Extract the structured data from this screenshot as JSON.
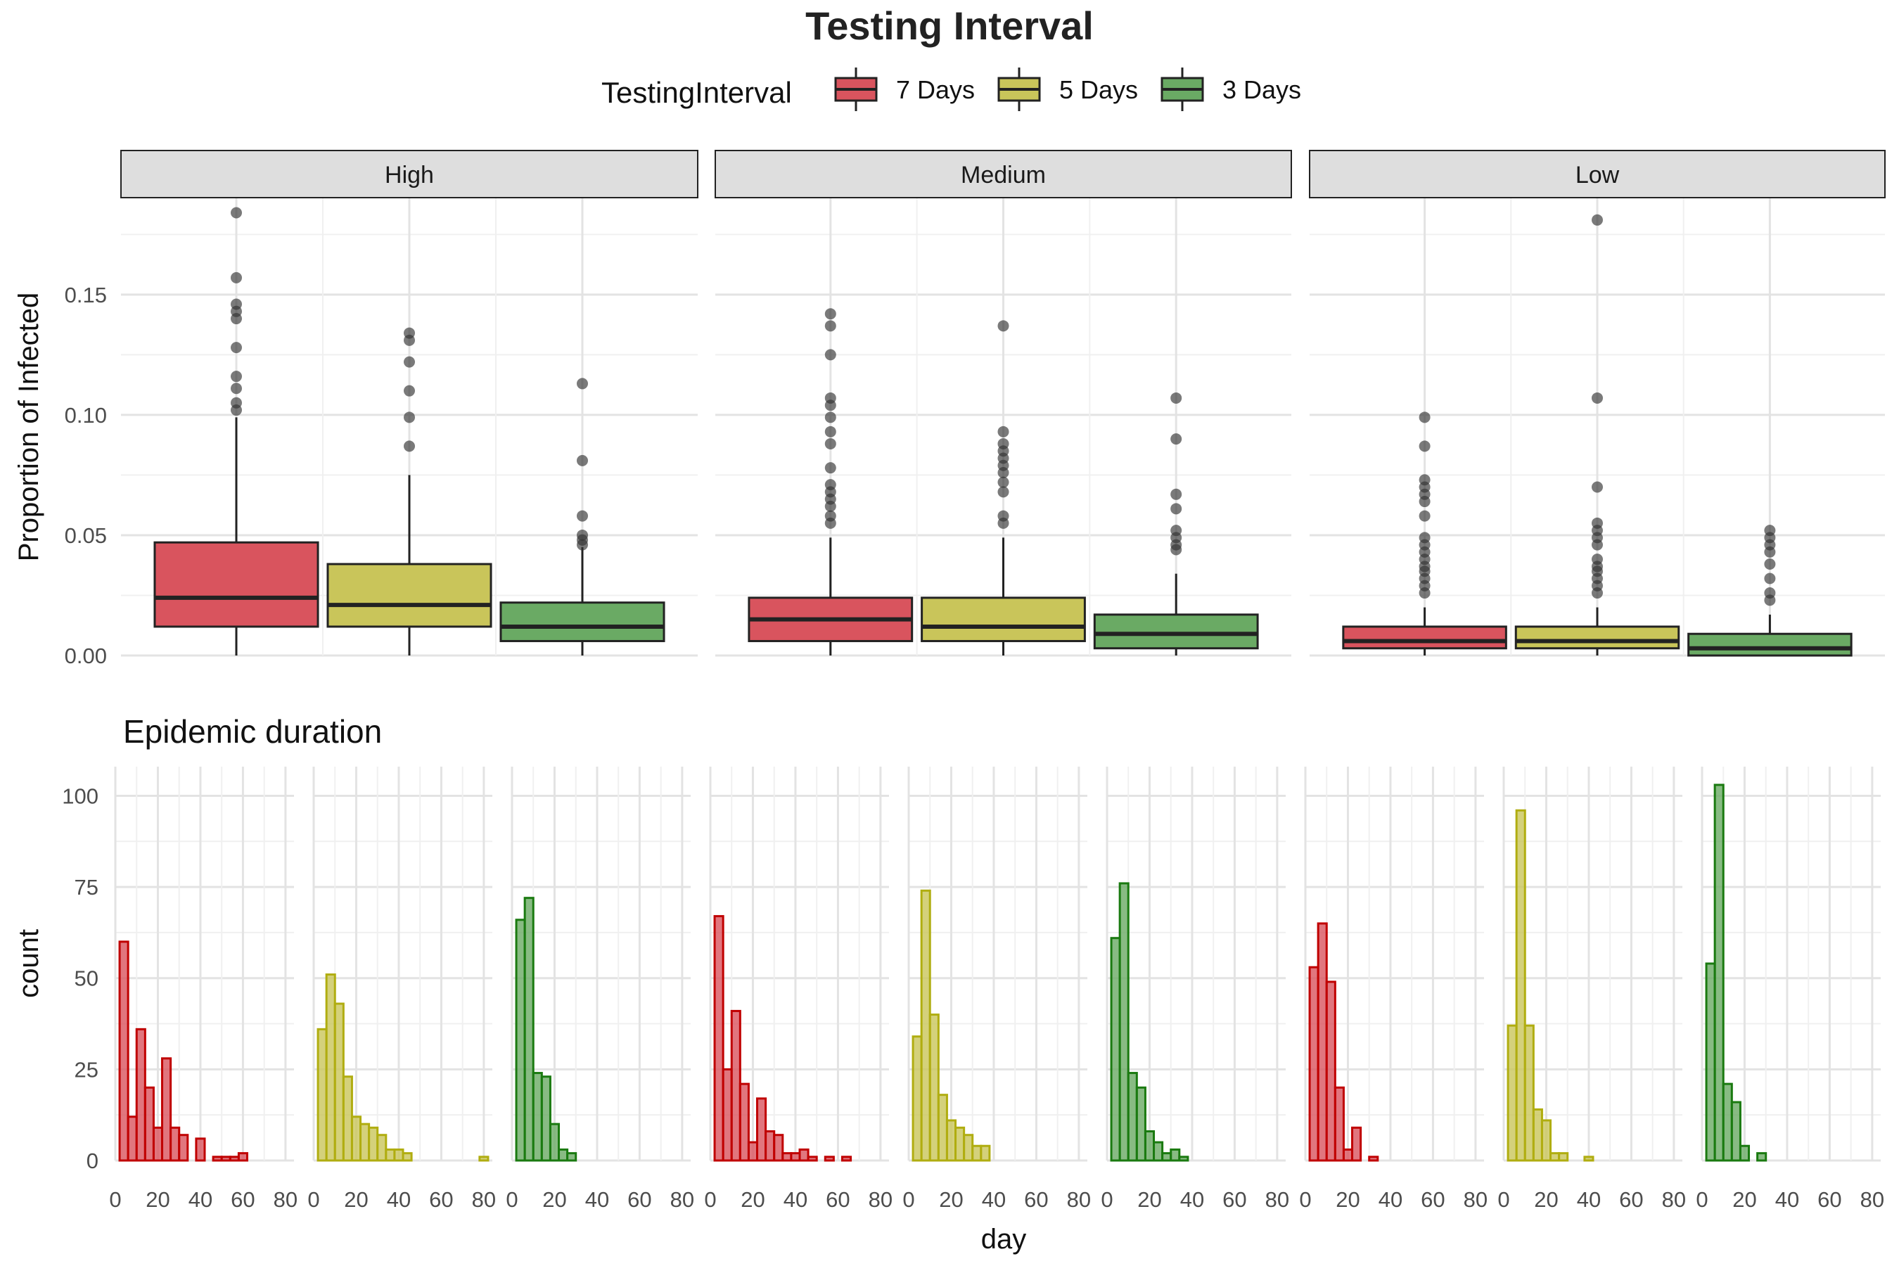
{
  "chart_data": [
    {
      "type": "boxplot",
      "title": "Testing Interval",
      "ylabel": "Proportion of Infected",
      "ylim": [
        0,
        0.19
      ],
      "yticks": [
        "0.00",
        "0.05",
        "0.10",
        "0.15"
      ],
      "ytick_values": [
        0,
        0.05,
        0.1,
        0.15
      ],
      "legend": {
        "title": "TestingInterval",
        "position": "top",
        "entries": [
          {
            "label": "7 Days",
            "color": "#d9545e"
          },
          {
            "label": "5 Days",
            "color": "#c9c55a"
          },
          {
            "label": "3 Days",
            "color": "#6aaa64"
          }
        ]
      },
      "facets": [
        {
          "label": "High",
          "boxes": [
            {
              "series": "7 Days",
              "lower_whisker": 0,
              "q1": 0.012,
              "median": 0.024,
              "q3": 0.047,
              "upper_whisker": 0.099,
              "outliers": [
                0.184,
                0.157,
                0.146,
                0.143,
                0.14,
                0.128,
                0.116,
                0.111,
                0.105,
                0.102
              ]
            },
            {
              "series": "5 Days",
              "lower_whisker": 0,
              "q1": 0.012,
              "median": 0.021,
              "q3": 0.038,
              "upper_whisker": 0.075,
              "outliers": [
                0.134,
                0.131,
                0.122,
                0.11,
                0.099,
                0.087
              ]
            },
            {
              "series": "3 Days",
              "lower_whisker": 0,
              "q1": 0.006,
              "median": 0.012,
              "q3": 0.022,
              "upper_whisker": 0.045,
              "outliers": [
                0.113,
                0.081,
                0.058,
                0.05,
                0.048,
                0.046
              ]
            }
          ]
        },
        {
          "label": "Medium",
          "boxes": [
            {
              "series": "7 Days",
              "lower_whisker": 0,
              "q1": 0.006,
              "median": 0.015,
              "q3": 0.024,
              "upper_whisker": 0.049,
              "outliers": [
                0.142,
                0.137,
                0.125,
                0.107,
                0.104,
                0.099,
                0.093,
                0.088,
                0.078,
                0.071,
                0.068,
                0.065,
                0.062,
                0.058,
                0.055
              ]
            },
            {
              "series": "5 Days",
              "lower_whisker": 0,
              "q1": 0.006,
              "median": 0.012,
              "q3": 0.024,
              "upper_whisker": 0.049,
              "outliers": [
                0.137,
                0.093,
                0.088,
                0.085,
                0.082,
                0.079,
                0.076,
                0.072,
                0.068,
                0.058,
                0.055
              ]
            },
            {
              "series": "3 Days",
              "lower_whisker": 0,
              "q1": 0.003,
              "median": 0.009,
              "q3": 0.017,
              "upper_whisker": 0.034,
              "outliers": [
                0.107,
                0.09,
                0.067,
                0.061,
                0.052,
                0.049,
                0.046,
                0.044
              ]
            }
          ]
        },
        {
          "label": "Low",
          "boxes": [
            {
              "series": "7 Days",
              "lower_whisker": 0,
              "q1": 0.003,
              "median": 0.006,
              "q3": 0.012,
              "upper_whisker": 0.02,
              "outliers": [
                0.099,
                0.087,
                0.073,
                0.07,
                0.067,
                0.064,
                0.058,
                0.049,
                0.046,
                0.043,
                0.04,
                0.037,
                0.035,
                0.032,
                0.029,
                0.026
              ]
            },
            {
              "series": "5 Days",
              "lower_whisker": 0,
              "q1": 0.003,
              "median": 0.006,
              "q3": 0.012,
              "upper_whisker": 0.02,
              "outliers": [
                0.181,
                0.107,
                0.07,
                0.055,
                0.052,
                0.049,
                0.046,
                0.04,
                0.037,
                0.035,
                0.032,
                0.029,
                0.026
              ]
            },
            {
              "series": "3 Days",
              "lower_whisker": 0,
              "q1": 0,
              "median": 0.003,
              "q3": 0.009,
              "upper_whisker": 0.017,
              "outliers": [
                0.052,
                0.049,
                0.046,
                0.043,
                0.038,
                0.032,
                0.026,
                0.023
              ]
            }
          ]
        }
      ]
    },
    {
      "type": "bar",
      "subtitle": "Epidemic duration",
      "xlabel": "day",
      "ylabel": "count",
      "xlim": [
        0,
        84
      ],
      "ylim": [
        0,
        108
      ],
      "xticks": [
        "0",
        "20",
        "40",
        "60",
        "80"
      ],
      "xtick_values": [
        0,
        20,
        40,
        60,
        80
      ],
      "yticks": [
        "0",
        "25",
        "50",
        "75",
        "100"
      ],
      "ytick_values": [
        0,
        25,
        50,
        75,
        100
      ],
      "bin_width": 4,
      "bin_starts": [
        2,
        6,
        10,
        14,
        18,
        22,
        26,
        30,
        34,
        38,
        42,
        46,
        50,
        54,
        58,
        62,
        66,
        70,
        74,
        78
      ],
      "panels": [
        {
          "group": "High",
          "series": "7 Days",
          "fill": "#d9545e",
          "stroke": "#c00000",
          "values": [
            60,
            12,
            36,
            20,
            9,
            28,
            9,
            7,
            0,
            6,
            0,
            1,
            1,
            1,
            2,
            0,
            0,
            0,
            0,
            0
          ]
        },
        {
          "group": "High",
          "series": "5 Days",
          "fill": "#c9c55a",
          "stroke": "#b0ad10",
          "values": [
            36,
            51,
            43,
            23,
            12,
            10,
            9,
            7,
            3,
            3,
            2,
            0,
            0,
            0,
            0,
            0,
            0,
            0,
            0,
            1
          ]
        },
        {
          "group": "High",
          "series": "3 Days",
          "fill": "#6aaa64",
          "stroke": "#1a7a10",
          "values": [
            66,
            72,
            24,
            23,
            10,
            3,
            2,
            0,
            0,
            0,
            0,
            0,
            0,
            0,
            0,
            0,
            0,
            0,
            0,
            0
          ]
        },
        {
          "group": "Medium",
          "series": "7 Days",
          "fill": "#d9545e",
          "stroke": "#c00000",
          "values": [
            67,
            25,
            41,
            21,
            5,
            17,
            8,
            7,
            2,
            2,
            3,
            1,
            0,
            1,
            0,
            1,
            0,
            0,
            0,
            0
          ]
        },
        {
          "group": "Medium",
          "series": "5 Days",
          "fill": "#c9c55a",
          "stroke": "#b0ad10",
          "values": [
            34,
            74,
            40,
            18,
            11,
            9,
            7,
            4,
            4,
            0,
            0,
            0,
            0,
            0,
            0,
            0,
            0,
            0,
            0,
            0
          ]
        },
        {
          "group": "Medium",
          "series": "3 Days",
          "fill": "#6aaa64",
          "stroke": "#1a7a10",
          "values": [
            61,
            76,
            24,
            20,
            8,
            5,
            2,
            3,
            1,
            0,
            0,
            0,
            0,
            0,
            0,
            0,
            0,
            0,
            0,
            0
          ]
        },
        {
          "group": "Low",
          "series": "7 Days",
          "fill": "#d9545e",
          "stroke": "#c00000",
          "values": [
            53,
            65,
            49,
            20,
            3,
            9,
            0,
            1,
            0,
            0,
            0,
            0,
            0,
            0,
            0,
            0,
            0,
            0,
            0,
            0
          ]
        },
        {
          "group": "Low",
          "series": "5 Days",
          "fill": "#c9c55a",
          "stroke": "#b0ad10",
          "values": [
            37,
            96,
            37,
            14,
            11,
            2,
            2,
            0,
            0,
            1,
            0,
            0,
            0,
            0,
            0,
            0,
            0,
            0,
            0,
            0
          ]
        },
        {
          "group": "Low",
          "series": "3 Days",
          "fill": "#6aaa64",
          "stroke": "#1a7a10",
          "values": [
            54,
            103,
            21,
            16,
            4,
            0,
            2,
            0,
            0,
            0,
            0,
            0,
            0,
            0,
            0,
            0,
            0,
            0,
            0,
            0
          ]
        }
      ]
    }
  ]
}
